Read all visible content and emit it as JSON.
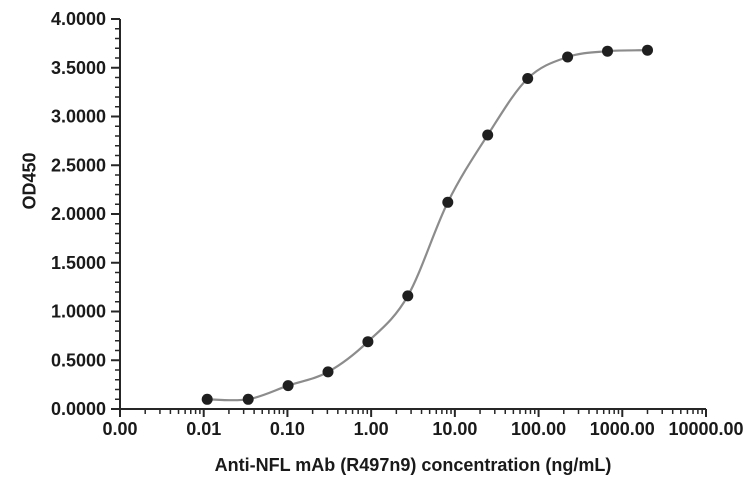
{
  "chart_data": {
    "type": "scatter",
    "title": "",
    "xlabel": "Anti-NFL mAb (R497n9) concentration (ng/mL)",
    "ylabel": "OD450",
    "x_scale": "log",
    "xlim_log": [
      -3,
      4
    ],
    "ylim": [
      0,
      4
    ],
    "grid": false,
    "legend": "none",
    "x_ticks": [
      {
        "value": 0.001,
        "label": "0.00"
      },
      {
        "value": 0.01,
        "label": "0.01"
      },
      {
        "value": 0.1,
        "label": "0.10"
      },
      {
        "value": 1,
        "label": "1.00"
      },
      {
        "value": 10,
        "label": "10.00"
      },
      {
        "value": 100,
        "label": "100.00"
      },
      {
        "value": 1000,
        "label": "1000.00"
      },
      {
        "value": 10000,
        "label": "10000.00"
      }
    ],
    "y_ticks": [
      {
        "value": 0.0,
        "label": "0.0000"
      },
      {
        "value": 0.5,
        "label": "0.5000"
      },
      {
        "value": 1.0,
        "label": "1.0000"
      },
      {
        "value": 1.5,
        "label": "1.5000"
      },
      {
        "value": 2.0,
        "label": "2.0000"
      },
      {
        "value": 2.5,
        "label": "2.5000"
      },
      {
        "value": 3.0,
        "label": "3.0000"
      },
      {
        "value": 3.5,
        "label": "3.5000"
      },
      {
        "value": 4.0,
        "label": "4.0000"
      }
    ],
    "y_minor_step": 0.1,
    "series": [
      {
        "name": "Anti-NFL mAb (R497n9)",
        "x": [
          0.011,
          0.034,
          0.102,
          0.305,
          0.914,
          2.74,
          8.23,
          24.7,
          74.1,
          222.2,
          666.7,
          2000
        ],
        "y": [
          0.1,
          0.1,
          0.24,
          0.38,
          0.69,
          1.16,
          2.12,
          2.81,
          3.39,
          3.61,
          3.67,
          3.68
        ],
        "line_color": "#8c8c8c",
        "marker_color": "#1f1f1f"
      }
    ]
  },
  "colors": {
    "background": "#ffffff",
    "axis": "#262626",
    "tick_text": "#1a1a1a"
  }
}
